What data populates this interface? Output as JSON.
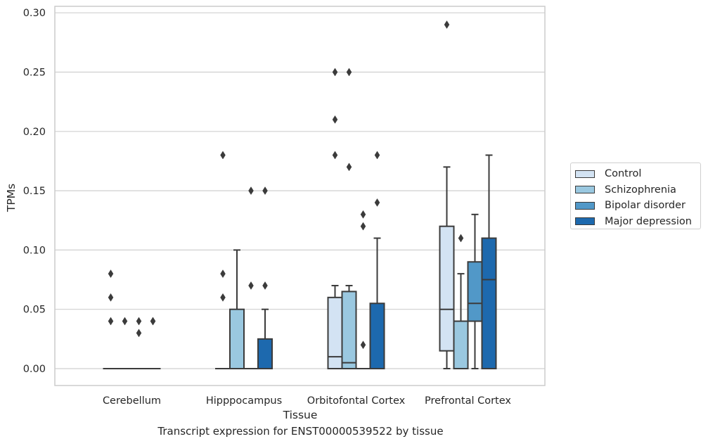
{
  "caption": "Transcript expression for ENST00000539522 by tissue",
  "chart_data": {
    "type": "box",
    "xlabel": "Tissue",
    "ylabel": "TPMs",
    "ylim": [
      -0.014,
      0.305
    ],
    "yticks": [
      0.0,
      0.05,
      0.1,
      0.15,
      0.2,
      0.25,
      0.3
    ],
    "ytick_labels": [
      "0.00",
      "0.05",
      "0.10",
      "0.15",
      "0.20",
      "0.25",
      "0.30"
    ],
    "grid": "horizontal",
    "legend_position": "right",
    "categories": [
      "Cerebellum",
      "Hipppocampus",
      "Orbitofontal Cortex",
      "Prefrontal Cortex"
    ],
    "series": [
      {
        "name": "Control",
        "color": "#d3e3f3",
        "boxes": [
          {
            "q1": 0,
            "median": 0,
            "q3": 0,
            "whislo": 0,
            "whishi": 0,
            "fliers": [
              0.08,
              0.06,
              0.04
            ]
          },
          {
            "q1": 0,
            "median": 0,
            "q3": 0,
            "whislo": 0,
            "whishi": 0,
            "fliers": [
              0.18,
              0.08,
              0.06
            ]
          },
          {
            "q1": 0,
            "median": 0.01,
            "q3": 0.06,
            "whislo": 0,
            "whishi": 0.07,
            "fliers": [
              0.25,
              0.21,
              0.18
            ]
          },
          {
            "q1": 0.015,
            "median": 0.05,
            "q3": 0.12,
            "whislo": 0,
            "whishi": 0.17,
            "fliers": [
              0.29
            ]
          }
        ]
      },
      {
        "name": "Schizophrenia",
        "color": "#9ac8e0",
        "boxes": [
          {
            "q1": 0,
            "median": 0,
            "q3": 0,
            "whislo": 0,
            "whishi": 0,
            "fliers": [
              0.04
            ]
          },
          {
            "q1": 0,
            "median": 0,
            "q3": 0.05,
            "whislo": 0,
            "whishi": 0.1,
            "fliers": []
          },
          {
            "q1": 0,
            "median": 0.005,
            "q3": 0.065,
            "whislo": 0,
            "whishi": 0.07,
            "fliers": [
              0.25,
              0.17
            ]
          },
          {
            "q1": 0,
            "median": 0,
            "q3": 0.04,
            "whislo": 0,
            "whishi": 0.08,
            "fliers": [
              0.11
            ]
          }
        ]
      },
      {
        "name": "Bipolar disorder",
        "color": "#5198c8",
        "boxes": [
          {
            "q1": 0,
            "median": 0,
            "q3": 0,
            "whislo": 0,
            "whishi": 0,
            "fliers": [
              0.04,
              0.03
            ]
          },
          {
            "q1": 0,
            "median": 0,
            "q3": 0,
            "whislo": 0,
            "whishi": 0,
            "fliers": [
              0.15,
              0.07
            ]
          },
          {
            "q1": 0,
            "median": 0,
            "q3": 0,
            "whislo": 0,
            "whishi": 0,
            "fliers": [
              0.13,
              0.12,
              0.02
            ]
          },
          {
            "q1": 0.04,
            "median": 0.055,
            "q3": 0.09,
            "whislo": 0,
            "whishi": 0.13,
            "fliers": []
          }
        ]
      },
      {
        "name": "Major depression",
        "color": "#1d69ae",
        "boxes": [
          {
            "q1": 0,
            "median": 0,
            "q3": 0,
            "whislo": 0,
            "whishi": 0,
            "fliers": [
              0.04,
              0.04
            ]
          },
          {
            "q1": 0,
            "median": 0,
            "q3": 0.025,
            "whislo": 0,
            "whishi": 0.05,
            "fliers": [
              0.15,
              0.07
            ]
          },
          {
            "q1": 0,
            "median": 0,
            "q3": 0.055,
            "whislo": 0,
            "whishi": 0.11,
            "fliers": [
              0.18,
              0.14
            ]
          },
          {
            "q1": 0,
            "median": 0.075,
            "q3": 0.11,
            "whislo": 0,
            "whishi": 0.18,
            "fliers": []
          }
        ]
      }
    ]
  }
}
